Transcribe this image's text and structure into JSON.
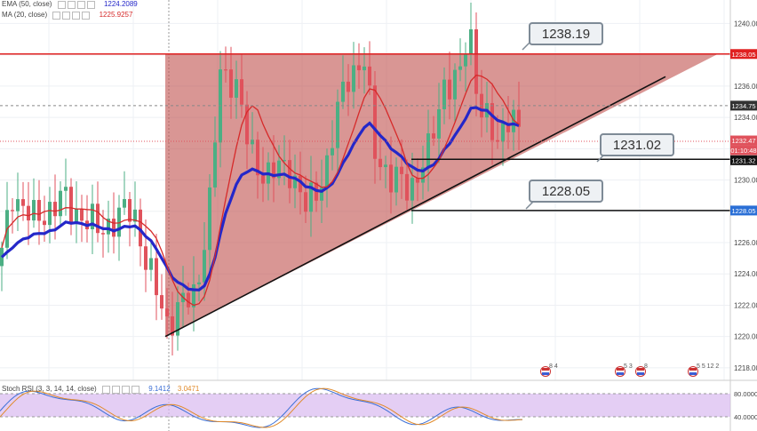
{
  "legend": {
    "ema": {
      "label": "EMA (50, close)",
      "value": "1224.2089",
      "color": "#2427c9"
    },
    "ma": {
      "label": "MA (20, close)",
      "value": "1225.9257",
      "color": "#d62a2a"
    },
    "rsi": {
      "label": "Stoch RSI (3, 3, 14, 14, close)",
      "k": "9.1412",
      "d": "3.0471",
      "k_color": "#3b6fd6",
      "d_color": "#e08a2a"
    }
  },
  "colors": {
    "up": "#4caf84",
    "down": "#e0525c",
    "triangle": "#c0504d",
    "resistance": "#e02020",
    "support_line": "#111111",
    "panel": "#d9b9f0"
  },
  "chart_data": {
    "type": "candlestick",
    "y_range": [
      1217.2,
      1241.5
    ],
    "y_ticks": [
      1218,
      1220,
      1222,
      1224,
      1226,
      1228,
      1230,
      1232,
      1234,
      1236,
      1238,
      1240
    ],
    "price_labels": [
      {
        "value": "1238.05",
        "color": "#e02020"
      },
      {
        "value": "1234.75",
        "color": "#333333"
      },
      {
        "value": "1232.47",
        "color": "#e0525c"
      },
      {
        "value": "01:10:48",
        "color": "#e0525c"
      },
      {
        "value": "1231.32",
        "color": "#111111"
      },
      {
        "value": "1228.05",
        "color": "#2a6fd6"
      }
    ],
    "annotations": [
      "1238.19",
      "1231.02",
      "1228.05"
    ],
    "resistance": 1238.05,
    "support_levels": [
      1231.32,
      1228.05
    ],
    "rsi_ticks": [
      "80.0000",
      "40.0000"
    ],
    "event_markers": [
      "8 4",
      "5 3",
      "8",
      "5 5 12 2"
    ]
  }
}
